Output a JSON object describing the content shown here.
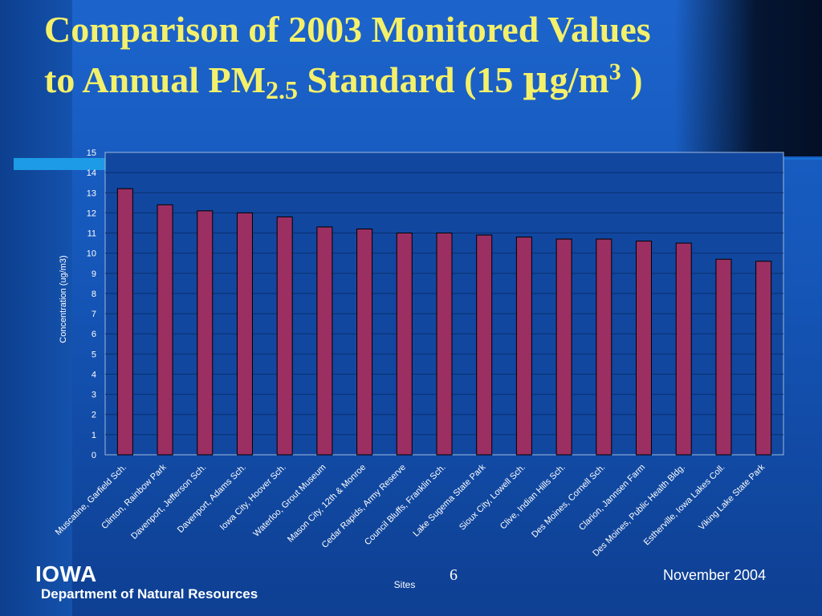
{
  "slide": {
    "title_line1": "Comparison of 2003 Monitored Values",
    "title_line2_prefix": "to Annual PM",
    "title_subscript": "2.5",
    "title_line2_mid": " Standard (15 ",
    "title_mu": "µ",
    "title_unit": "g/m",
    "title_superscript": "3",
    "title_close": " )",
    "slide_number": "6",
    "footer_date": "November 2004",
    "logo_title": "IOWA",
    "logo_subtitle": "Department of Natural Resources"
  },
  "colors": {
    "bar_fill": "#9b2f62",
    "title_text": "#f4f06a",
    "background": "#1556b8",
    "accent": "#1e9be6"
  },
  "chart_data": {
    "type": "bar",
    "title": "",
    "xlabel": "Sites",
    "ylabel": "Concentration (ug/m3)",
    "ylim": [
      0,
      15
    ],
    "yticks": [
      0,
      1,
      2,
      3,
      4,
      5,
      6,
      7,
      8,
      9,
      10,
      11,
      12,
      13,
      14,
      15
    ],
    "grid": true,
    "legend": "none",
    "categories": [
      "Muscatine, Garfield Sch.",
      "Clinton, Rainbow Park",
      "Davenport, Jefferson Sch.",
      "Davenport, Adams Sch.",
      "Iowa City, Hoover Sch.",
      "Waterloo, Grout Museum",
      "Mason City, 12th & Monroe",
      "Cedar Rapids, Army Reserve",
      "Council Bluffs, Franklin Sch.",
      "Lake Sugema State Park",
      "Sioux City, Lowell Sch.",
      "Clive, Indian Hills Sch.",
      "Des Moines, Cornell Sch.",
      "Clarion, Jannsen Farm",
      "Des Moines, Public Health Bldg.",
      "Estherville, Iowa Lakes Coll.",
      "Viking Lake State Park"
    ],
    "values": [
      13.2,
      12.4,
      12.1,
      12.0,
      11.8,
      11.3,
      11.2,
      11.0,
      11.0,
      10.9,
      10.8,
      10.7,
      10.7,
      10.6,
      10.5,
      9.7,
      9.6
    ]
  }
}
